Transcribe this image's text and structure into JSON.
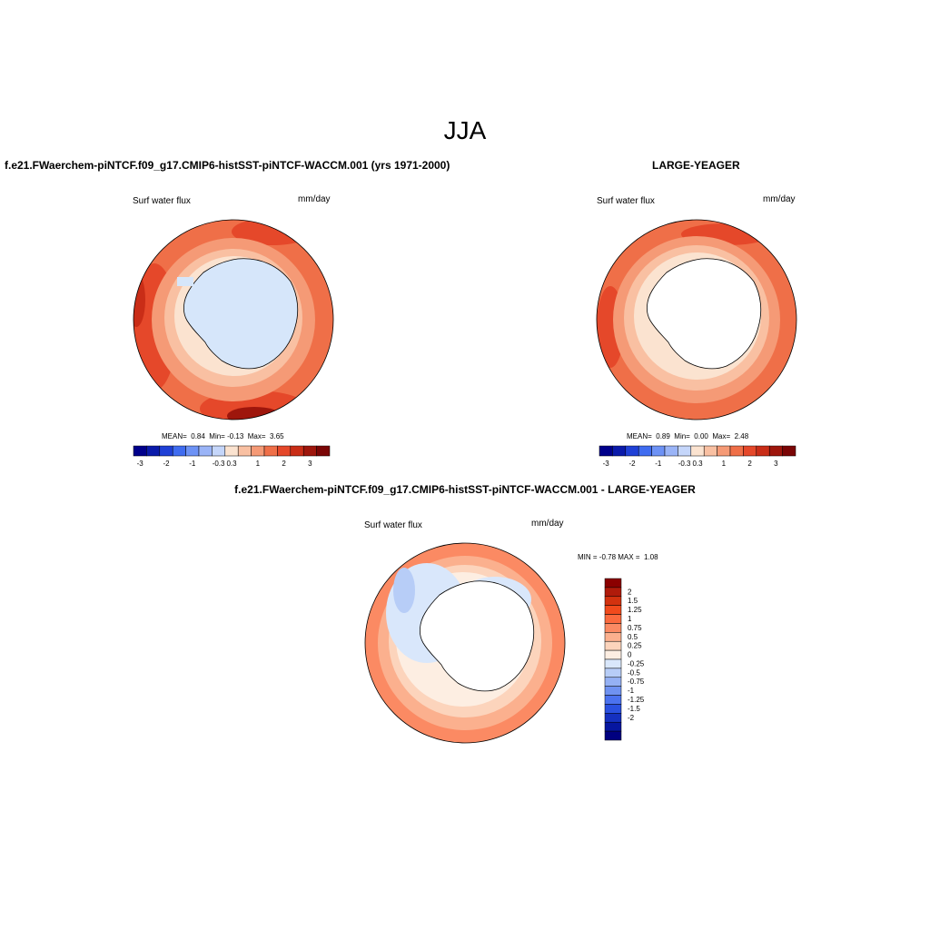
{
  "title": "JJA",
  "panels": [
    {
      "title": "f.e21.FWaerchem-piNTCF.f09_g17.CMIP6-histSST-piNTCF-WACCM.001 (yrs 1971-2000)",
      "variable": "Surf water flux",
      "units": "mm/day",
      "stats": {
        "mean_label": "MEAN=",
        "mean": "0.84",
        "min_label": "Min=",
        "min": "-0.13",
        "max_label": "Max=",
        "max": "3.65"
      }
    },
    {
      "title": "LARGE-YEAGER",
      "variable": "Surf water flux",
      "units": "mm/day",
      "stats": {
        "mean_label": "MEAN=",
        "mean": "0.89",
        "min_label": "Min=",
        "min": "0.00",
        "max_label": "Max=",
        "max": "2.48"
      }
    },
    {
      "title": "f.e21.FWaerchem-piNTCF.f09_g17.CMIP6-histSST-piNTCF-WACCM.001 - LARGE-YEAGER",
      "variable": "Surf water flux",
      "units": "mm/day",
      "minmax": {
        "min_label": "MIN =",
        "min": "-0.78",
        "max_label": "MAX =",
        "max": "1.08"
      }
    }
  ],
  "colorbar_h": {
    "colors": [
      "#00008b",
      "#0a1aaa",
      "#1f40d6",
      "#3f6cf0",
      "#6d92f5",
      "#9ab4f7",
      "#c5d6fa",
      "#fbe3d0",
      "#f9c0a2",
      "#f59a76",
      "#ef6f48",
      "#e5482a",
      "#c92d17",
      "#9e160c",
      "#7a0505"
    ],
    "ticks": [
      "-3",
      "-2",
      "-1",
      "-0.3",
      "0.3",
      "1",
      "2",
      "3"
    ]
  },
  "colorbar_v": {
    "colors": [
      "#8b0000",
      "#b01b0b",
      "#d3320f",
      "#f14a1c",
      "#fb6a3e",
      "#fb8a63",
      "#fbb08e",
      "#fcd4bc",
      "#fdeee2",
      "#d9e7fb",
      "#b7cdf7",
      "#95b1f4",
      "#6f92f1",
      "#4b72ef",
      "#2a50e0",
      "#1530c0",
      "#0616a0",
      "#000080"
    ],
    "ticks": [
      "2",
      "1.5",
      "1.25",
      "1",
      "0.75",
      "0.5",
      "0.25",
      "0",
      "-0.25",
      "-0.5",
      "-0.75",
      "-1",
      "-1.25",
      "-1.5",
      "-2"
    ]
  }
}
